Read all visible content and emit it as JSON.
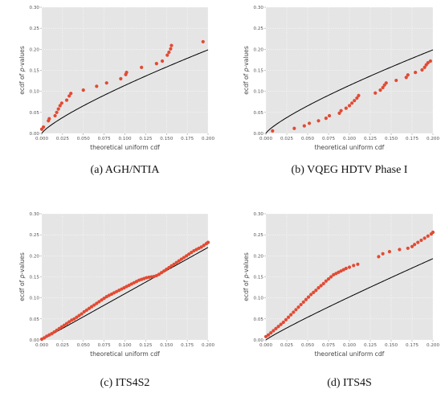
{
  "chart_data": [
    {
      "type": "scatter",
      "caption": "(a) AGH/NTIA",
      "xlabel": "theoretical uniform cdf",
      "ylabel_parts": [
        "ecdf of ",
        "p",
        "-values"
      ],
      "xlim": [
        0,
        0.2
      ],
      "ylim": [
        0,
        0.3
      ],
      "xticks": [
        "0.000",
        "0.025",
        "0.050",
        "0.075",
        "0.100",
        "0.125",
        "0.150",
        "0.175",
        "0.200"
      ],
      "yticks": [
        "0.00",
        "0.05",
        "0.10",
        "0.15",
        "0.20",
        "0.25",
        "0.30"
      ],
      "grid": true,
      "reference_line": {
        "type": "power",
        "coef": 0.72,
        "exponent": 0.8,
        "color": "#000000"
      },
      "marker_color": "#e24a33",
      "points": [
        [
          0.0,
          0.01
        ],
        [
          0.002,
          0.015
        ],
        [
          0.008,
          0.03
        ],
        [
          0.009,
          0.035
        ],
        [
          0.016,
          0.042
        ],
        [
          0.018,
          0.05
        ],
        [
          0.02,
          0.058
        ],
        [
          0.022,
          0.066
        ],
        [
          0.024,
          0.072
        ],
        [
          0.03,
          0.079
        ],
        [
          0.033,
          0.089
        ],
        [
          0.035,
          0.095
        ],
        [
          0.05,
          0.103
        ],
        [
          0.066,
          0.112
        ],
        [
          0.078,
          0.12
        ],
        [
          0.095,
          0.13
        ],
        [
          0.101,
          0.14
        ],
        [
          0.102,
          0.145
        ],
        [
          0.12,
          0.157
        ],
        [
          0.138,
          0.166
        ],
        [
          0.145,
          0.172
        ],
        [
          0.151,
          0.186
        ],
        [
          0.153,
          0.193
        ],
        [
          0.155,
          0.201
        ],
        [
          0.156,
          0.209
        ],
        [
          0.194,
          0.218
        ]
      ]
    },
    {
      "type": "scatter",
      "caption": "(b) VQEG HDTV Phase I",
      "xlabel": "theoretical uniform cdf",
      "ylabel_parts": [
        "ecdf of ",
        "p",
        "-values"
      ],
      "xlim": [
        0,
        0.2
      ],
      "ylim": [
        0,
        0.3
      ],
      "xticks": [
        "0.000",
        "0.025",
        "0.050",
        "0.075",
        "0.100",
        "0.125",
        "0.150",
        "0.175",
        "0.200"
      ],
      "yticks": [
        "0.00",
        "0.05",
        "0.10",
        "0.15",
        "0.20",
        "0.25",
        "0.30"
      ],
      "grid": true,
      "reference_line": {
        "type": "power",
        "coef": 0.72,
        "exponent": 0.8,
        "color": "#000000"
      },
      "marker_color": "#e24a33",
      "points": [
        [
          0.008,
          0.006
        ],
        [
          0.034,
          0.012
        ],
        [
          0.046,
          0.018
        ],
        [
          0.052,
          0.024
        ],
        [
          0.063,
          0.03
        ],
        [
          0.072,
          0.036
        ],
        [
          0.076,
          0.042
        ],
        [
          0.088,
          0.048
        ],
        [
          0.09,
          0.054
        ],
        [
          0.096,
          0.06
        ],
        [
          0.1,
          0.066
        ],
        [
          0.103,
          0.072
        ],
        [
          0.106,
          0.078
        ],
        [
          0.109,
          0.084
        ],
        [
          0.111,
          0.09
        ],
        [
          0.131,
          0.096
        ],
        [
          0.137,
          0.103
        ],
        [
          0.14,
          0.109
        ],
        [
          0.142,
          0.115
        ],
        [
          0.144,
          0.12
        ],
        [
          0.156,
          0.126
        ],
        [
          0.168,
          0.133
        ],
        [
          0.17,
          0.139
        ],
        [
          0.179,
          0.145
        ],
        [
          0.187,
          0.151
        ],
        [
          0.19,
          0.157
        ],
        [
          0.192,
          0.163
        ],
        [
          0.194,
          0.168
        ],
        [
          0.197,
          0.172
        ]
      ]
    },
    {
      "type": "scatter",
      "caption": "(c) ITS4S2",
      "xlabel": "theoretical uniform cdf",
      "ylabel_parts": [
        "ecdf of ",
        "p",
        "-values"
      ],
      "xlim": [
        0,
        0.2
      ],
      "ylim": [
        0,
        0.3
      ],
      "xticks": [
        "0.000",
        "0.025",
        "0.050",
        "0.075",
        "0.100",
        "0.125",
        "0.150",
        "0.175",
        "0.200"
      ],
      "yticks": [
        "0.00",
        "0.05",
        "0.10",
        "0.15",
        "0.20",
        "0.25",
        "0.30"
      ],
      "grid": true,
      "reference_line": {
        "type": "power",
        "coef": 1.1,
        "exponent": 1.0,
        "offset": 0.0,
        "color": "#000000"
      },
      "marker_color": "#e24a33",
      "points": [
        [
          0.0,
          0.002
        ],
        [
          0.003,
          0.005
        ],
        [
          0.006,
          0.009
        ],
        [
          0.009,
          0.012
        ],
        [
          0.012,
          0.015
        ],
        [
          0.015,
          0.019
        ],
        [
          0.018,
          0.023
        ],
        [
          0.021,
          0.027
        ],
        [
          0.024,
          0.031
        ],
        [
          0.027,
          0.035
        ],
        [
          0.03,
          0.039
        ],
        [
          0.033,
          0.043
        ],
        [
          0.036,
          0.047
        ],
        [
          0.039,
          0.05
        ],
        [
          0.042,
          0.054
        ],
        [
          0.045,
          0.058
        ],
        [
          0.048,
          0.062
        ],
        [
          0.051,
          0.067
        ],
        [
          0.054,
          0.071
        ],
        [
          0.057,
          0.075
        ],
        [
          0.06,
          0.079
        ],
        [
          0.063,
          0.083
        ],
        [
          0.066,
          0.087
        ],
        [
          0.069,
          0.091
        ],
        [
          0.072,
          0.095
        ],
        [
          0.075,
          0.099
        ],
        [
          0.078,
          0.103
        ],
        [
          0.081,
          0.106
        ],
        [
          0.084,
          0.109
        ],
        [
          0.087,
          0.112
        ],
        [
          0.09,
          0.115
        ],
        [
          0.093,
          0.118
        ],
        [
          0.096,
          0.121
        ],
        [
          0.099,
          0.124
        ],
        [
          0.102,
          0.127
        ],
        [
          0.105,
          0.13
        ],
        [
          0.108,
          0.133
        ],
        [
          0.111,
          0.136
        ],
        [
          0.114,
          0.139
        ],
        [
          0.117,
          0.142
        ],
        [
          0.12,
          0.144
        ],
        [
          0.123,
          0.146
        ],
        [
          0.126,
          0.148
        ],
        [
          0.129,
          0.149
        ],
        [
          0.132,
          0.15
        ],
        [
          0.135,
          0.151
        ],
        [
          0.138,
          0.153
        ],
        [
          0.141,
          0.156
        ],
        [
          0.144,
          0.16
        ],
        [
          0.147,
          0.164
        ],
        [
          0.15,
          0.168
        ],
        [
          0.153,
          0.172
        ],
        [
          0.156,
          0.176
        ],
        [
          0.159,
          0.18
        ],
        [
          0.162,
          0.184
        ],
        [
          0.165,
          0.188
        ],
        [
          0.168,
          0.192
        ],
        [
          0.171,
          0.196
        ],
        [
          0.174,
          0.2
        ],
        [
          0.177,
          0.204
        ],
        [
          0.18,
          0.208
        ],
        [
          0.183,
          0.212
        ],
        [
          0.186,
          0.215
        ],
        [
          0.189,
          0.218
        ],
        [
          0.192,
          0.221
        ],
        [
          0.195,
          0.225
        ],
        [
          0.198,
          0.229
        ],
        [
          0.2,
          0.232
        ]
      ]
    },
    {
      "type": "scatter",
      "caption": "(d) ITS4S",
      "xlabel": "theoretical uniform cdf",
      "ylabel_parts": [
        "ecdf of ",
        "p",
        "-values"
      ],
      "xlim": [
        0,
        0.2
      ],
      "ylim": [
        0,
        0.3
      ],
      "xticks": [
        "0.000",
        "0.025",
        "0.050",
        "0.075",
        "0.100",
        "0.125",
        "0.150",
        "0.175",
        "0.200"
      ],
      "yticks": [
        "0.00",
        "0.05",
        "0.10",
        "0.15",
        "0.20",
        "0.25",
        "0.30"
      ],
      "grid": true,
      "reference_line": {
        "type": "power",
        "coef": 0.85,
        "exponent": 0.92,
        "color": "#000000"
      },
      "marker_color": "#e24a33",
      "points": [
        [
          0.0,
          0.008
        ],
        [
          0.003,
          0.012
        ],
        [
          0.006,
          0.017
        ],
        [
          0.009,
          0.022
        ],
        [
          0.012,
          0.027
        ],
        [
          0.015,
          0.032
        ],
        [
          0.018,
          0.037
        ],
        [
          0.021,
          0.042
        ],
        [
          0.024,
          0.048
        ],
        [
          0.027,
          0.054
        ],
        [
          0.03,
          0.06
        ],
        [
          0.033,
          0.066
        ],
        [
          0.036,
          0.072
        ],
        [
          0.039,
          0.078
        ],
        [
          0.042,
          0.084
        ],
        [
          0.045,
          0.09
        ],
        [
          0.048,
          0.096
        ],
        [
          0.051,
          0.102
        ],
        [
          0.054,
          0.108
        ],
        [
          0.057,
          0.113
        ],
        [
          0.06,
          0.118
        ],
        [
          0.063,
          0.124
        ],
        [
          0.066,
          0.129
        ],
        [
          0.069,
          0.134
        ],
        [
          0.072,
          0.14
        ],
        [
          0.075,
          0.145
        ],
        [
          0.078,
          0.15
        ],
        [
          0.081,
          0.155
        ],
        [
          0.084,
          0.158
        ],
        [
          0.087,
          0.161
        ],
        [
          0.09,
          0.164
        ],
        [
          0.093,
          0.167
        ],
        [
          0.096,
          0.17
        ],
        [
          0.1,
          0.173
        ],
        [
          0.105,
          0.177
        ],
        [
          0.11,
          0.18
        ],
        [
          0.135,
          0.198
        ],
        [
          0.14,
          0.205
        ],
        [
          0.148,
          0.21
        ],
        [
          0.16,
          0.215
        ],
        [
          0.17,
          0.218
        ],
        [
          0.175,
          0.222
        ],
        [
          0.178,
          0.227
        ],
        [
          0.182,
          0.232
        ],
        [
          0.186,
          0.237
        ],
        [
          0.19,
          0.242
        ],
        [
          0.194,
          0.247
        ],
        [
          0.198,
          0.252
        ],
        [
          0.2,
          0.256
        ]
      ]
    }
  ]
}
